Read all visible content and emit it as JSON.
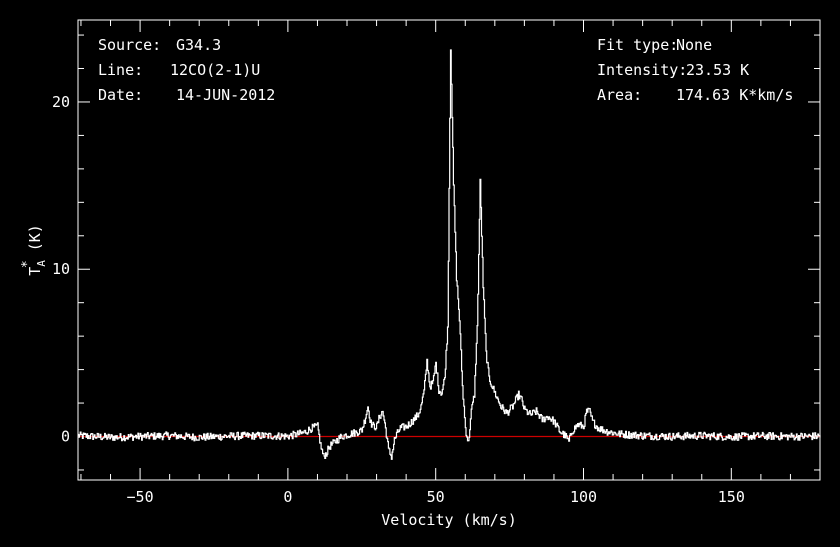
{
  "chart_data": {
    "type": "line",
    "xlabel": "Velocity (km/s)",
    "ylabel_base": "T",
    "ylabel_sub": "A",
    "ylabel_sup": "*",
    "ylabel_tail": " (K)",
    "xlim": [
      -71,
      180
    ],
    "ylim": [
      -2.6,
      24.9
    ],
    "xticks": [
      -50,
      0,
      50,
      100,
      150
    ],
    "yticks": [
      0,
      10,
      20
    ],
    "baseline": 0,
    "colors": {
      "background": "#000000",
      "axes": "#ffffff",
      "spectrum": "#ffffff",
      "baseline": "#cc0000"
    },
    "info_left": [
      {
        "key": "Source:",
        "value": "G34.3"
      },
      {
        "key": "Line:",
        "value": "12CO(2-1)U"
      },
      {
        "key": "Date:",
        "value": "14-JUN-2012"
      }
    ],
    "info_right": [
      {
        "key": "Fit type:",
        "value": "None"
      },
      {
        "key": "Intensity:",
        "value": "23.53 K"
      },
      {
        "key": "Area:",
        "value": "174.63 K*km/s"
      }
    ],
    "series": [
      {
        "x": [
          -71,
          -60,
          -50,
          -40,
          -30,
          -20,
          -10,
          0,
          5,
          8,
          10,
          11,
          12,
          13,
          14,
          16,
          18,
          20,
          22,
          24,
          25,
          26,
          27,
          28,
          29,
          30,
          31,
          32,
          33,
          34,
          35,
          36,
          37,
          38,
          40,
          42,
          44,
          45,
          46,
          47,
          48,
          49,
          50,
          51,
          52,
          53,
          54,
          55,
          56,
          57,
          58,
          59,
          60,
          61,
          62,
          63,
          64,
          65,
          66,
          67,
          68,
          70,
          72,
          74,
          76,
          78,
          79,
          80,
          82,
          84,
          86,
          88,
          90,
          92,
          94,
          95,
          96,
          98,
          100,
          101,
          102,
          103,
          105,
          108,
          112,
          120,
          130,
          140,
          150,
          160,
          170,
          180
        ],
        "y": [
          0.05,
          -0.05,
          0.0,
          0.05,
          -0.05,
          0.02,
          0.05,
          0.02,
          0.2,
          0.5,
          0.6,
          -0.5,
          -1.2,
          -1.0,
          -0.6,
          -0.3,
          0.0,
          0.1,
          0.2,
          0.3,
          0.4,
          1.0,
          1.8,
          0.8,
          0.6,
          0.6,
          1.2,
          1.5,
          0.5,
          -0.8,
          -1.2,
          -0.2,
          0.2,
          0.5,
          0.6,
          0.9,
          1.3,
          1.8,
          2.7,
          4.5,
          3.0,
          3.2,
          4.4,
          2.8,
          2.6,
          3.5,
          6.5,
          23.3,
          15.0,
          9.5,
          7.0,
          3.0,
          0.5,
          -0.4,
          1.5,
          2.5,
          6.5,
          15.2,
          9.0,
          5.0,
          3.5,
          2.6,
          1.8,
          1.4,
          1.8,
          2.5,
          2.2,
          1.6,
          1.3,
          1.5,
          1.0,
          1.2,
          0.9,
          0.3,
          0.0,
          -0.3,
          0.3,
          0.7,
          0.6,
          1.5,
          1.5,
          0.9,
          0.5,
          0.3,
          0.15,
          0.05,
          0.0,
          0.05,
          -0.02,
          0.03,
          0.0,
          0.02
        ]
      }
    ]
  }
}
